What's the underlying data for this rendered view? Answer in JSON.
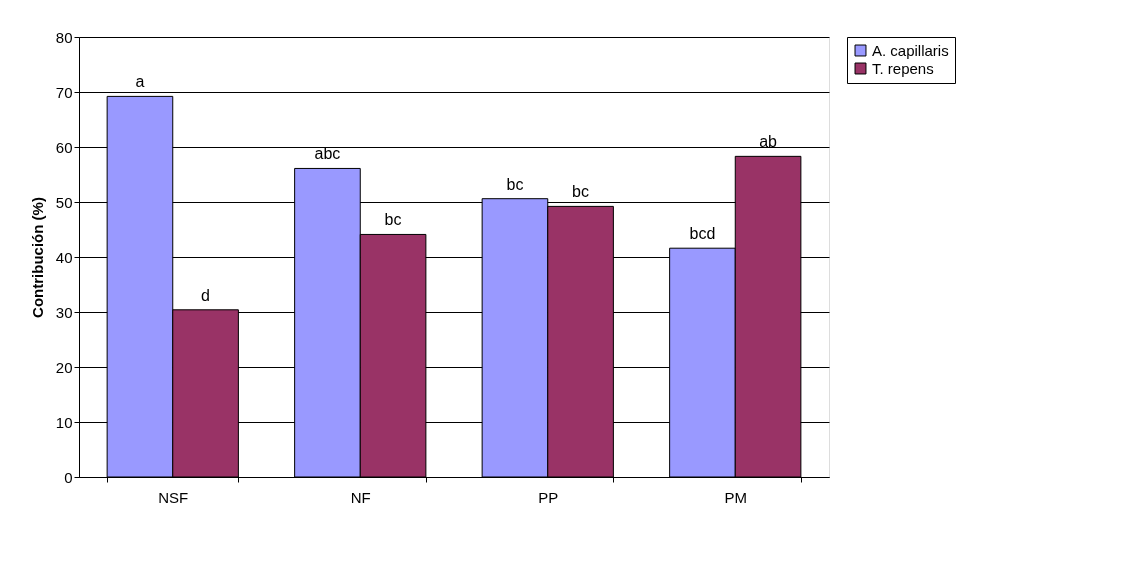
{
  "chart_data": {
    "type": "bar",
    "ylabel": "Contribución (%)",
    "categories": [
      "NSF",
      "NF",
      "PP",
      "PM"
    ],
    "series": [
      {
        "name": "A. capillaris",
        "color": "#9999ff",
        "values": [
          69.2,
          56.1,
          50.6,
          41.6
        ]
      },
      {
        "name": "T. repens",
        "color": "#993366",
        "values": [
          30.4,
          44.1,
          49.2,
          58.3
        ]
      }
    ],
    "ylim": [
      0,
      80
    ],
    "yticks": [
      0,
      10,
      20,
      30,
      40,
      50,
      60,
      70,
      80
    ],
    "grid": "y",
    "legend": "right",
    "annotations": [
      {
        "text": "a",
        "x": "NSF",
        "y": 69.2
      },
      {
        "text": "d",
        "x": "NSF",
        "y": 30.4
      },
      {
        "text": "abc",
        "x": "NF",
        "y": 56.1
      },
      {
        "text": "bc",
        "x": "NF",
        "y": 44.1
      },
      {
        "text": "bc",
        "x": "PP",
        "y": 50.6
      },
      {
        "text": "bc",
        "x": "PP",
        "y": 49.2
      },
      {
        "text": "bcd",
        "x": "PM",
        "y": 41.6
      },
      {
        "text": "ab",
        "x": "PM",
        "y": 58.3
      }
    ]
  }
}
